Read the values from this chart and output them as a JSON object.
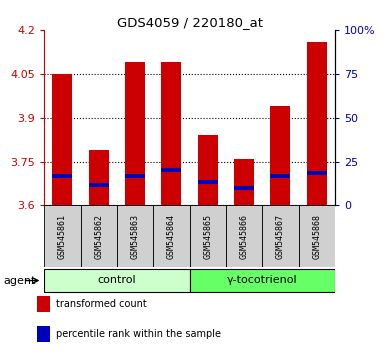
{
  "title": "GDS4059 / 220180_at",
  "samples": [
    "GSM545861",
    "GSM545862",
    "GSM545863",
    "GSM545864",
    "GSM545865",
    "GSM545866",
    "GSM545867",
    "GSM545868"
  ],
  "bar_values": [
    4.05,
    3.79,
    4.09,
    4.09,
    3.84,
    3.76,
    3.94,
    4.16
  ],
  "percentile_values": [
    3.7,
    3.67,
    3.7,
    3.72,
    3.68,
    3.66,
    3.7,
    3.71
  ],
  "ymin": 3.6,
  "ymax": 4.2,
  "yticks_left": [
    3.6,
    3.75,
    3.9,
    4.05,
    4.2
  ],
  "yticks_right_labels": [
    "0",
    "25",
    "50",
    "75",
    "100%"
  ],
  "yticks_right_vals": [
    3.6,
    3.75,
    3.9,
    4.05,
    4.2
  ],
  "groups": [
    {
      "label": "control",
      "indices": [
        0,
        1,
        2,
        3
      ],
      "color": "#ccffcc"
    },
    {
      "label": "γ-tocotrienol",
      "indices": [
        4,
        5,
        6,
        7
      ],
      "color": "#66ff66"
    }
  ],
  "bar_color": "#cc0000",
  "percentile_color": "#0000bb",
  "bg_color": "#ffffff",
  "left_tick_color": "#cc0000",
  "right_tick_color": "#0000bb",
  "bar_width": 0.55,
  "agent_label": "agent",
  "legend_items": [
    {
      "color": "#cc0000",
      "label": "transformed count"
    },
    {
      "color": "#0000bb",
      "label": "percentile rank within the sample"
    }
  ],
  "gridlines": [
    3.75,
    3.9,
    4.05
  ]
}
